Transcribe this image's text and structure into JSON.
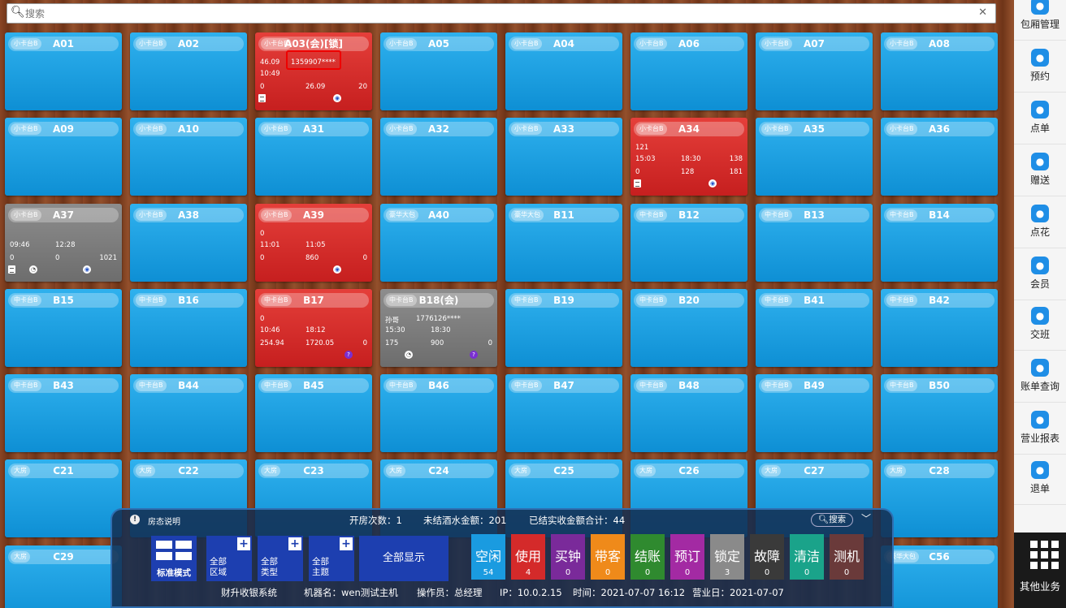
{
  "search": {
    "placeholder": "搜索"
  },
  "rooms": [
    {
      "type": "小卡台B",
      "name": "A01",
      "state": "free"
    },
    {
      "type": "小卡台B",
      "name": "A02",
      "state": "free"
    },
    {
      "type": "小卡台B",
      "name": "A03(会)[锁]",
      "state": "used",
      "lines": [
        [
          "46.09",
          "1359907****",
          ""
        ],
        [
          "10:49",
          "",
          ""
        ],
        [
          "0",
          "26.09",
          "20"
        ]
      ],
      "icons": [
        "bill",
        "basket"
      ]
    },
    {
      "type": "小卡台B",
      "name": "A05",
      "state": "free"
    },
    {
      "type": "小卡台B",
      "name": "A04",
      "state": "free"
    },
    {
      "type": "小卡台B",
      "name": "A06",
      "state": "free"
    },
    {
      "type": "小卡台B",
      "name": "A07",
      "state": "free"
    },
    {
      "type": "小卡台B",
      "name": "A08",
      "state": "free"
    },
    {
      "type": "小卡台B",
      "name": "A09",
      "state": "free"
    },
    {
      "type": "小卡台B",
      "name": "A10",
      "state": "free"
    },
    {
      "type": "小卡台B",
      "name": "A31",
      "state": "free"
    },
    {
      "type": "小卡台B",
      "name": "A32",
      "state": "free"
    },
    {
      "type": "小卡台B",
      "name": "A33",
      "state": "free"
    },
    {
      "type": "小卡台B",
      "name": "A34",
      "state": "used",
      "lines": [
        [
          "121",
          "",
          ""
        ],
        [
          "15:03",
          "18:30",
          "138"
        ],
        [
          "0",
          "128",
          "181"
        ]
      ],
      "icons": [
        "bill",
        "basket"
      ]
    },
    {
      "type": "小卡台B",
      "name": "A35",
      "state": "free"
    },
    {
      "type": "小卡台B",
      "name": "A36",
      "state": "free"
    },
    {
      "type": "小卡台B",
      "name": "A37",
      "state": "gray",
      "lines": [
        [
          "",
          "",
          ""
        ],
        [
          "09:46",
          "12:28",
          ""
        ],
        [
          "0",
          "0",
          "1021"
        ]
      ],
      "icons": [
        "bill",
        "gauge",
        "basket"
      ]
    },
    {
      "type": "小卡台B",
      "name": "A38",
      "state": "free"
    },
    {
      "type": "小卡台B",
      "name": "A39",
      "state": "used",
      "lines": [
        [
          "0",
          "",
          ""
        ],
        [
          "11:01",
          "11:05",
          ""
        ],
        [
          "0",
          "860",
          "0"
        ]
      ],
      "icons": [
        "basket"
      ]
    },
    {
      "type": "豪华大包",
      "name": "A40",
      "state": "free"
    },
    {
      "type": "豪华大包",
      "name": "B11",
      "state": "free"
    },
    {
      "type": "中卡台B",
      "name": "B12",
      "state": "free"
    },
    {
      "type": "中卡台B",
      "name": "B13",
      "state": "free"
    },
    {
      "type": "中卡台B",
      "name": "B14",
      "state": "free"
    },
    {
      "type": "中卡台B",
      "name": "B15",
      "state": "free"
    },
    {
      "type": "中卡台B",
      "name": "B16",
      "state": "free"
    },
    {
      "type": "中卡台B",
      "name": "B17",
      "state": "used",
      "lines": [
        [
          "0",
          "",
          ""
        ],
        [
          "10:46",
          "18:12",
          ""
        ],
        [
          "254.94",
          "1720.05",
          "0"
        ]
      ],
      "icons": [
        "qm"
      ]
    },
    {
      "type": "中卡台B",
      "name": "B18(会)",
      "state": "gray",
      "lines": [
        [
          "孙哥",
          "1776126****",
          ""
        ],
        [
          "15:30",
          "18:30",
          ""
        ],
        [
          "175",
          "900",
          "0"
        ]
      ],
      "icons": [
        "gauge",
        "qm"
      ]
    },
    {
      "type": "中卡台B",
      "name": "B19",
      "state": "free"
    },
    {
      "type": "中卡台B",
      "name": "B20",
      "state": "free"
    },
    {
      "type": "中卡台B",
      "name": "B41",
      "state": "free"
    },
    {
      "type": "中卡台B",
      "name": "B42",
      "state": "free"
    },
    {
      "type": "中卡台B",
      "name": "B43",
      "state": "free"
    },
    {
      "type": "中卡台B",
      "name": "B44",
      "state": "free"
    },
    {
      "type": "中卡台B",
      "name": "B45",
      "state": "free"
    },
    {
      "type": "中卡台B",
      "name": "B46",
      "state": "free"
    },
    {
      "type": "中卡台B",
      "name": "B47",
      "state": "free"
    },
    {
      "type": "中卡台B",
      "name": "B48",
      "state": "free"
    },
    {
      "type": "中卡台B",
      "name": "B49",
      "state": "free"
    },
    {
      "type": "中卡台B",
      "name": "B50",
      "state": "free"
    },
    {
      "type": "大房",
      "name": "C21",
      "state": "free"
    },
    {
      "type": "大房",
      "name": "C22",
      "state": "free"
    },
    {
      "type": "大房",
      "name": "C23",
      "state": "free"
    },
    {
      "type": "大房",
      "name": "C24",
      "state": "free"
    },
    {
      "type": "大房",
      "name": "C25",
      "state": "free"
    },
    {
      "type": "大房",
      "name": "C26",
      "state": "free"
    },
    {
      "type": "大房",
      "name": "C27",
      "state": "free"
    },
    {
      "type": "大房",
      "name": "C28",
      "state": "free"
    },
    {
      "type": "大房",
      "name": "C29",
      "state": "free"
    },
    {
      "type": "豪华大包",
      "name": "C56",
      "state": "free"
    }
  ],
  "sidebar": {
    "items": [
      {
        "icon": "room-manage-icon",
        "label": "包厢管理"
      },
      {
        "icon": "reserve-icon",
        "label": "预约"
      },
      {
        "icon": "order-icon",
        "label": "点单"
      },
      {
        "icon": "gift-icon",
        "label": "赠送"
      },
      {
        "icon": "flower-icon",
        "label": "点花"
      },
      {
        "icon": "member-icon",
        "label": "会员"
      },
      {
        "icon": "shift-icon",
        "label": "交班"
      },
      {
        "icon": "bill-query-icon",
        "label": "账单查询"
      },
      {
        "icon": "report-icon",
        "label": "营业报表"
      },
      {
        "icon": "refund-icon",
        "label": "退单"
      }
    ],
    "other_label": "其他业务"
  },
  "panel": {
    "legend_label": "房态说明",
    "open_count": "开房次数：1",
    "unsettled": "未结酒水金额：201",
    "settled": "已结实收金额合计：44",
    "search_label": "搜索",
    "mode_label": "标准模式",
    "filters": [
      {
        "line1": "全部",
        "line2": "区域"
      },
      {
        "line1": "全部",
        "line2": "类型"
      },
      {
        "line1": "全部",
        "line2": "主题"
      }
    ],
    "all_display": "全部显示",
    "statuses": [
      {
        "label": "空闲",
        "count": "54",
        "color": "#1a9be0"
      },
      {
        "label": "使用",
        "count": "4",
        "color": "#d42a2a"
      },
      {
        "label": "买钟",
        "count": "0",
        "color": "#7a2a9a"
      },
      {
        "label": "带客",
        "count": "0",
        "color": "#ef8a1a"
      },
      {
        "label": "结账",
        "count": "0",
        "color": "#2f8a2f"
      },
      {
        "label": "预订",
        "count": "0",
        "color": "#a32aa3"
      },
      {
        "label": "锁定",
        "count": "3",
        "color": "#8a8a8a"
      },
      {
        "label": "故障",
        "count": "0",
        "color": "#3a3a3a"
      },
      {
        "label": "清洁",
        "count": "0",
        "color": "#1aa38a"
      },
      {
        "label": "测机",
        "count": "0",
        "color": "#6a3a3a"
      }
    ],
    "footer": {
      "system": "财升收银系统",
      "machine": "机器名：wen测试主机",
      "operator": "操作员：总经理",
      "ip": "IP：10.0.2.15",
      "time": "时间：2021-07-07 16:12",
      "bizday": "营业日：2021-07-07"
    }
  }
}
